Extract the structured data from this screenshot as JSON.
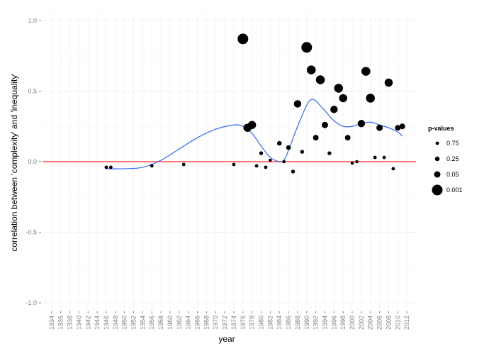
{
  "chart_data": {
    "type": "scatter",
    "title": "",
    "xlabel": "year",
    "ylabel": "correlation between 'complexity' and 'inequality'",
    "xlim": [
      1932,
      2014
    ],
    "ylim": [
      -1.05,
      1.05
    ],
    "x_ticks": [
      "1934",
      "1936",
      "1938",
      "1940",
      "1942",
      "1944",
      "1946",
      "1948",
      "1950",
      "1952",
      "1954",
      "1956",
      "1958",
      "1960",
      "1962",
      "1964",
      "1966",
      "1968",
      "1970",
      "1972",
      "1974",
      "1976",
      "1978",
      "1980",
      "1982",
      "1984",
      "1986",
      "1988",
      "1990",
      "1992",
      "1994",
      "1996",
      "1998",
      "2000",
      "2002",
      "2004",
      "2006",
      "2008",
      "2010",
      "2012"
    ],
    "y_ticks": [
      {
        "value": -1.0,
        "label": "-1.0"
      },
      {
        "value": -0.5,
        "label": "-0.5"
      },
      {
        "value": 0.0,
        "label": "0.0"
      },
      {
        "value": 0.5,
        "label": "0.5"
      },
      {
        "value": 1.0,
        "label": "1.0"
      }
    ],
    "grid": true,
    "reference_line": {
      "y": 0,
      "color": "#ff4d4d"
    },
    "smooth_color": "#3366ff",
    "legend": {
      "title": "p-values",
      "position": "right",
      "entries": [
        {
          "label": "0.75",
          "level": 0.75
        },
        {
          "label": "0.25",
          "level": 0.25
        },
        {
          "label": "0.05",
          "level": 0.05
        },
        {
          "label": "0.001",
          "level": 0.001
        }
      ]
    },
    "points": [
      {
        "x": 1946,
        "y": -0.04,
        "p": 0.75
      },
      {
        "x": 1947,
        "y": -0.04,
        "p": 0.75
      },
      {
        "x": 1956,
        "y": -0.03,
        "p": 0.75
      },
      {
        "x": 1963,
        "y": -0.02,
        "p": 0.75
      },
      {
        "x": 1974,
        "y": -0.02,
        "p": 0.75
      },
      {
        "x": 1976,
        "y": 0.87,
        "p": 0.001
      },
      {
        "x": 1977,
        "y": 0.24,
        "p": 0.01
      },
      {
        "x": 1978,
        "y": 0.26,
        "p": 0.01
      },
      {
        "x": 1979,
        "y": -0.03,
        "p": 0.75
      },
      {
        "x": 1980,
        "y": 0.06,
        "p": 0.5
      },
      {
        "x": 1981,
        "y": -0.04,
        "p": 0.75
      },
      {
        "x": 1982,
        "y": 0.01,
        "p": 0.9
      },
      {
        "x": 1984,
        "y": 0.13,
        "p": 0.25
      },
      {
        "x": 1985,
        "y": 0.0,
        "p": 0.9
      },
      {
        "x": 1986,
        "y": 0.1,
        "p": 0.25
      },
      {
        "x": 1987,
        "y": -0.07,
        "p": 0.5
      },
      {
        "x": 1988,
        "y": 0.41,
        "p": 0.02
      },
      {
        "x": 1989,
        "y": 0.07,
        "p": 0.5
      },
      {
        "x": 1990,
        "y": 0.81,
        "p": 0.001
      },
      {
        "x": 1991,
        "y": 0.65,
        "p": 0.005
      },
      {
        "x": 1992,
        "y": 0.17,
        "p": 0.1
      },
      {
        "x": 1993,
        "y": 0.58,
        "p": 0.005
      },
      {
        "x": 1994,
        "y": 0.26,
        "p": 0.05
      },
      {
        "x": 1995,
        "y": 0.06,
        "p": 0.5
      },
      {
        "x": 1996,
        "y": 0.37,
        "p": 0.02
      },
      {
        "x": 1997,
        "y": 0.52,
        "p": 0.005
      },
      {
        "x": 1998,
        "y": 0.45,
        "p": 0.01
      },
      {
        "x": 1999,
        "y": 0.17,
        "p": 0.1
      },
      {
        "x": 2000,
        "y": -0.01,
        "p": 0.9
      },
      {
        "x": 2001,
        "y": 0.0,
        "p": 0.9
      },
      {
        "x": 2002,
        "y": 0.27,
        "p": 0.02
      },
      {
        "x": 2003,
        "y": 0.64,
        "p": 0.005
      },
      {
        "x": 2004,
        "y": 0.45,
        "p": 0.005
      },
      {
        "x": 2005,
        "y": 0.03,
        "p": 0.75
      },
      {
        "x": 2006,
        "y": 0.24,
        "p": 0.05
      },
      {
        "x": 2007,
        "y": 0.03,
        "p": 0.75
      },
      {
        "x": 2008,
        "y": 0.56,
        "p": 0.01
      },
      {
        "x": 2009,
        "y": -0.05,
        "p": 0.75
      },
      {
        "x": 2010,
        "y": 0.24,
        "p": 0.1
      },
      {
        "x": 2011,
        "y": 0.25,
        "p": 0.1
      }
    ],
    "smooth_line": [
      {
        "x": 1946,
        "y": -0.05
      },
      {
        "x": 1950,
        "y": -0.05
      },
      {
        "x": 1954,
        "y": -0.04
      },
      {
        "x": 1958,
        "y": 0.01
      },
      {
        "x": 1962,
        "y": 0.09
      },
      {
        "x": 1966,
        "y": 0.17
      },
      {
        "x": 1970,
        "y": 0.23
      },
      {
        "x": 1974,
        "y": 0.26
      },
      {
        "x": 1976,
        "y": 0.25
      },
      {
        "x": 1978,
        "y": 0.2
      },
      {
        "x": 1980,
        "y": 0.11
      },
      {
        "x": 1982,
        "y": 0.03
      },
      {
        "x": 1984,
        "y": 0.0
      },
      {
        "x": 1985,
        "y": 0.01
      },
      {
        "x": 1986,
        "y": 0.08
      },
      {
        "x": 1988,
        "y": 0.25
      },
      {
        "x": 1990,
        "y": 0.4
      },
      {
        "x": 1991,
        "y": 0.44
      },
      {
        "x": 1992,
        "y": 0.43
      },
      {
        "x": 1994,
        "y": 0.36
      },
      {
        "x": 1996,
        "y": 0.29
      },
      {
        "x": 1998,
        "y": 0.25
      },
      {
        "x": 2000,
        "y": 0.25
      },
      {
        "x": 2002,
        "y": 0.27
      },
      {
        "x": 2004,
        "y": 0.28
      },
      {
        "x": 2006,
        "y": 0.26
      },
      {
        "x": 2008,
        "y": 0.24
      },
      {
        "x": 2010,
        "y": 0.21
      },
      {
        "x": 2011,
        "y": 0.18
      }
    ]
  }
}
